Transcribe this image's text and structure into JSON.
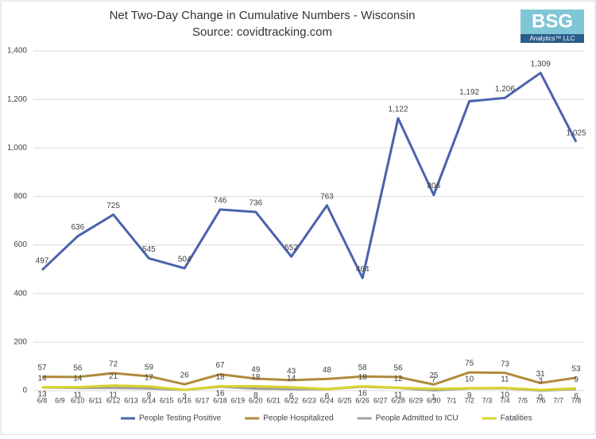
{
  "chart_data": {
    "type": "line",
    "title": "Net Two-Day Change in Cumulative Numbers - Wisconsin",
    "subtitle": "Source: covidtracking.com",
    "logo": {
      "text": "BSG",
      "subtext": "Analytics™ LLC"
    },
    "categories": [
      "6/8",
      "6/9",
      "6/10",
      "6/11",
      "6/12",
      "6/13",
      "6/14",
      "6/15",
      "6/16",
      "6/17",
      "6/18",
      "6/19",
      "6/20",
      "6/21",
      "6/22",
      "6/23",
      "6/24",
      "6/25",
      "6/26",
      "6/27",
      "6/28",
      "6/29",
      "6/30",
      "7/1",
      "7/2",
      "7/3",
      "7/4",
      "7/5",
      "7/6",
      "7/7",
      "7/8"
    ],
    "x": [
      "6/8",
      "6/10",
      "6/12",
      "6/14",
      "6/16",
      "6/18",
      "6/20",
      "6/22",
      "6/24",
      "6/26",
      "6/28",
      "6/30",
      "7/2",
      "7/4",
      "7/6",
      "7/8"
    ],
    "series": [
      {
        "name": "People Testing Positive",
        "color": "#4a62ad",
        "values": [
          497,
          636,
          725,
          545,
          504,
          746,
          736,
          552,
          763,
          464,
          1122,
          806,
          1192,
          1206,
          1309,
          1025
        ],
        "value_labels": [
          "497",
          "636",
          "725",
          "545",
          "504",
          "746",
          "736",
          "552",
          "763",
          "464",
          "1,122",
          "806",
          "1,192",
          "1,206",
          "1,309",
          "1,025"
        ],
        "label_pos": "above"
      },
      {
        "name": "People Hospitalized",
        "color": "#b08a3a",
        "values": [
          57,
          56,
          72,
          59,
          26,
          67,
          49,
          43,
          48,
          58,
          56,
          25,
          75,
          73,
          31,
          53
        ],
        "label_pos": "above"
      },
      {
        "name": "People Admitted to ICU",
        "color": "#a0a0a0",
        "values": [
          13,
          11,
          11,
          9,
          3,
          16,
          8,
          6,
          6,
          16,
          11,
          1,
          9,
          10,
          0,
          6
        ],
        "label_pos": "below"
      },
      {
        "name": "Fatalities",
        "color": "#d8d42a",
        "values": [
          14,
          14,
          21,
          17,
          3,
          18,
          18,
          14,
          6,
          18,
          12,
          7,
          10,
          11,
          3,
          9
        ],
        "value_labels": [
          "14",
          "14",
          "21",
          "17",
          null,
          "18",
          "18",
          "14",
          null,
          "18",
          "12",
          "7",
          "10",
          "11",
          "3",
          "9"
        ],
        "label_pos": "above"
      }
    ],
    "ylim": [
      0,
      1400
    ],
    "yticks": [
      0,
      200,
      400,
      600,
      800,
      {
        "value": 1000,
        "label": "1,000"
      },
      {
        "value": 1200,
        "label": "1,200"
      },
      {
        "value": 1400,
        "label": "1,400"
      }
    ],
    "grid": true,
    "legend": "bottom"
  }
}
